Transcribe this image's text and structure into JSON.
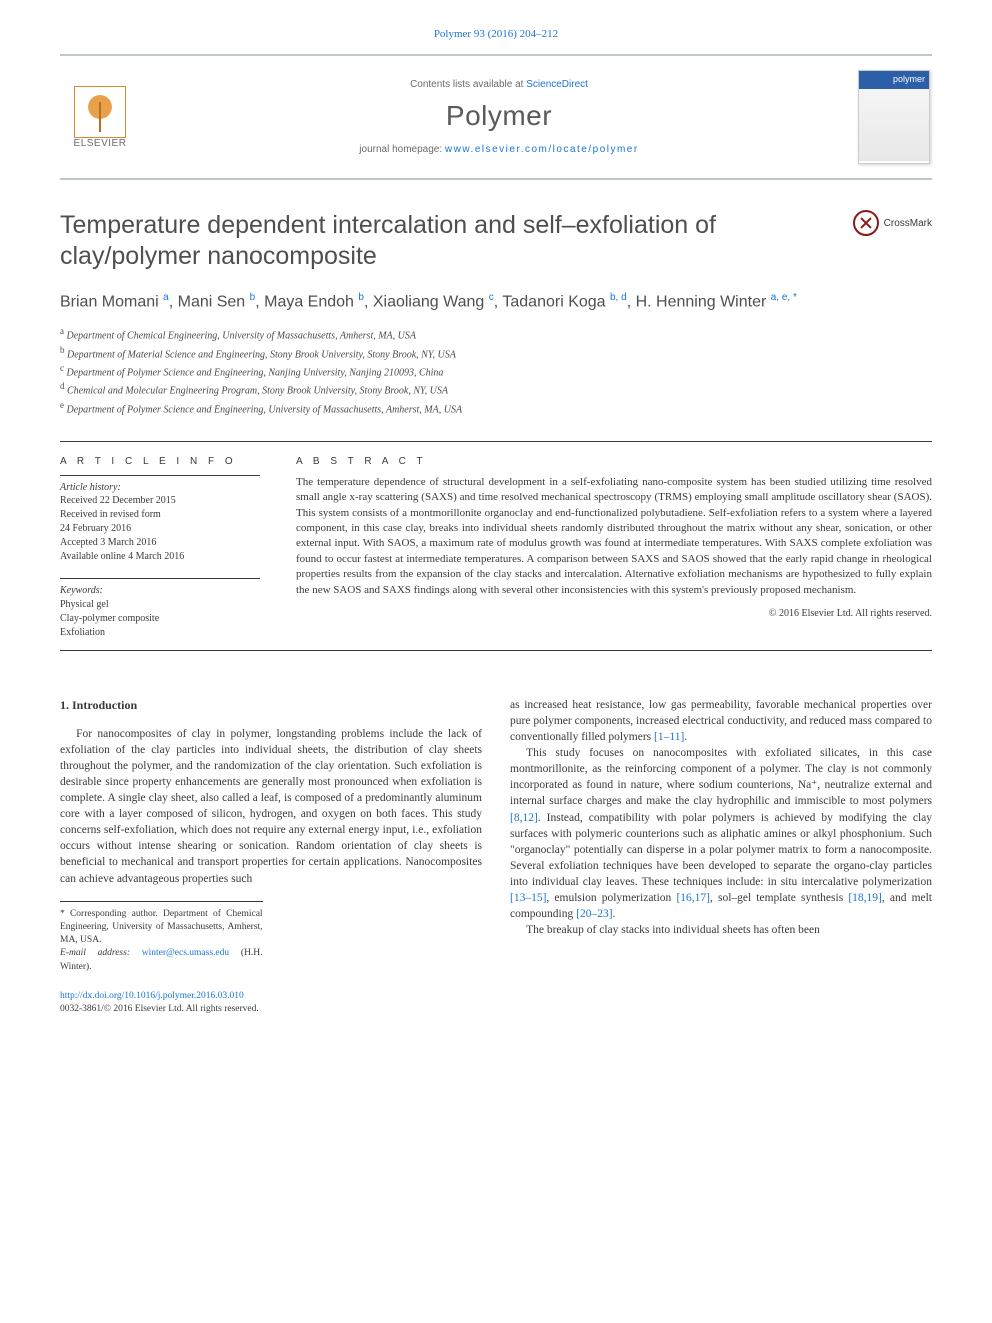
{
  "citation": "Polymer 93 (2016) 204–212",
  "header": {
    "publisher": "ELSEVIER",
    "contents_label": "Contents lists available at ",
    "contents_link": "ScienceDirect",
    "journal": "Polymer",
    "homepage_label": "journal homepage: ",
    "homepage_url": "www.elsevier.com/locate/polymer",
    "cover_banner": "polymer"
  },
  "crossmark": "CrossMark",
  "title": "Temperature dependent intercalation and self–exfoliation of clay/polymer nanocomposite",
  "authors_html": "Brian Momani <sup>a</sup>, Mani Sen <sup>b</sup>, Maya Endoh <sup>b</sup>, Xiaoliang Wang <sup>c</sup>, Tadanori Koga <sup>b, d</sup>, H. Henning Winter <sup>a, e, *</sup>",
  "affiliations": [
    {
      "sup": "a",
      "text": "Department of Chemical Engineering, University of Massachusetts, Amherst, MA, USA"
    },
    {
      "sup": "b",
      "text": "Department of Material Science and Engineering, Stony Brook University, Stony Brook, NY, USA"
    },
    {
      "sup": "c",
      "text": "Department of Polymer Science and Engineering, Nanjing University, Nanjing 210093, China"
    },
    {
      "sup": "d",
      "text": "Chemical and Molecular Engineering Program, Stony Brook University, Stony Brook, NY, USA"
    },
    {
      "sup": "e",
      "text": "Department of Polymer Science and Engineering, University of Massachusetts, Amherst, MA, USA"
    }
  ],
  "article_info": {
    "heading": "A R T I C L E  I N F O",
    "history_label": "Article history:",
    "history": [
      "Received 22 December 2015",
      "Received in revised form",
      "24 February 2016",
      "Accepted 3 March 2016",
      "Available online 4 March 2016"
    ],
    "keywords_label": "Keywords:",
    "keywords": [
      "Physical gel",
      "Clay-polymer composite",
      "Exfoliation"
    ]
  },
  "abstract": {
    "heading": "A B S T R A C T",
    "text": "The temperature dependence of structural development in a self-exfoliating nano-composite system has been studied utilizing time resolved small angle x-ray scattering (SAXS) and time resolved mechanical spectroscopy (TRMS) employing small amplitude oscillatory shear (SAOS). This system consists of a montmorillonite organoclay and end-functionalized polybutadiene. Self-exfoliation refers to a system where a layered component, in this case clay, breaks into individual sheets randomly distributed throughout the matrix without any shear, sonication, or other external input. With SAOS, a maximum rate of modulus growth was found at intermediate temperatures. With SAXS complete exfoliation was found to occur fastest at intermediate temperatures. A comparison between SAXS and SAOS showed that the early rapid change in rheological properties results from the expansion of the clay stacks and intercalation. Alternative exfoliation mechanisms are hypothesized to fully explain the new SAOS and SAXS findings along with several other inconsistencies with this system's previously proposed mechanism.",
    "copyright": "© 2016 Elsevier Ltd. All rights reserved."
  },
  "intro": {
    "heading": "1. Introduction",
    "p1": "For nanocomposites of clay in polymer, longstanding problems include the lack of exfoliation of the clay particles into individual sheets, the distribution of clay sheets throughout the polymer, and the randomization of the clay orientation. Such exfoliation is desirable since property enhancements are generally most pronounced when exfoliation is complete. A single clay sheet, also called a leaf, is composed of a predominantly aluminum core with a layer composed of silicon, hydrogen, and oxygen on both faces. This study concerns self-exfoliation, which does not require any external energy input, i.e., exfoliation occurs without intense shearing or sonication. Random orientation of clay sheets is beneficial to mechanical and transport properties for certain applications. Nanocomposites can achieve advantageous properties such",
    "p2_pre": "as increased heat resistance, low gas permeability, favorable mechanical properties over pure polymer components, increased electrical conductivity, and reduced mass compared to conventionally filled polymers ",
    "p2_ref": "[1–11]",
    "p2_post": ".",
    "p3_pre": "This study focuses on nanocomposites with exfoliated silicates, in this case montmorillonite, as the reinforcing component of a polymer. The clay is not commonly incorporated as found in nature, where sodium counterions, Na⁺, neutralize external and internal surface charges and make the clay hydrophilic and immiscible to most polymers ",
    "p3_ref1": "[8,12]",
    "p3_mid": ". Instead, compatibility with polar polymers is achieved by modifying the clay surfaces with polymeric counterions such as aliphatic amines or alkyl phosphonium. Such \"organoclay\" potentially can disperse in a polar polymer matrix to form a nanocomposite. Several exfoliation techniques have been developed to separate the organo-clay particles into individual clay leaves. These techniques include: in situ intercalative polymerization ",
    "p3_ref2": "[13–15]",
    "p3_mid2": ", emulsion polymerization ",
    "p3_ref3": "[16,17]",
    "p3_mid3": ", sol–gel template synthesis ",
    "p3_ref4": "[18,19]",
    "p3_mid4": ", and melt compounding ",
    "p3_ref5": "[20–23]",
    "p3_post": ".",
    "p4": "The breakup of clay stacks into individual sheets has often been"
  },
  "footnotes": {
    "corr": "* Corresponding author. Department of Chemical Engineering, University of Massachusetts, Amherst, MA, USA.",
    "email_label": "E-mail address: ",
    "email": "winter@ecs.umass.edu",
    "email_who": " (H.H. Winter)."
  },
  "footer": {
    "doi": "http://dx.doi.org/10.1016/j.polymer.2016.03.010",
    "issn_line": "0032-3861/© 2016 Elsevier Ltd. All rights reserved."
  },
  "colors": {
    "link": "#1976d2",
    "rule": "#3a3a3a",
    "text": "#3a3a3a",
    "band_border": "#bfc7c9",
    "cover_banner": "#2b5fa8",
    "crossmark": "#8a1a1a"
  },
  "typography": {
    "title_fontsize": 25,
    "author_fontsize": 16,
    "body_fontsize": 11.5,
    "abstract_fontsize": 11,
    "meta_fontsize": 10,
    "journal_fontsize": 28
  }
}
